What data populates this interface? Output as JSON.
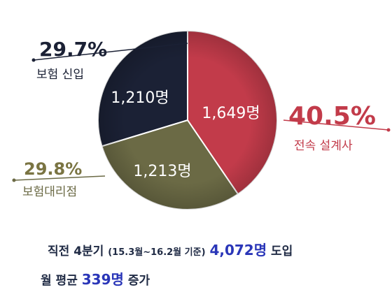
{
  "chart_data": {
    "type": "pie",
    "slices": [
      {
        "label": "전속 설계사",
        "count_label": "1,649명",
        "pct_label": "40.5%",
        "value": 40.5,
        "color": "#c23b4a",
        "pct_color": "#c23b4a",
        "label_color": "#c23b4a"
      },
      {
        "label": "보험대리점",
        "count_label": "1,213명",
        "pct_label": "29.8%",
        "value": 29.8,
        "color": "#6b6a45",
        "pct_color": "#7a7442",
        "label_color": "#6b6a45"
      },
      {
        "label": "보험 신입",
        "count_label": "1,210명",
        "pct_label": "29.7%",
        "value": 29.7,
        "color": "#1b2135",
        "pct_color": "#1b2135",
        "label_color": "#1b2135"
      }
    ]
  },
  "caption": {
    "line1_prefix": "직전 4분기",
    "line1_period": "(15.3월~16.2월 기준)",
    "line1_total": "4,072명",
    "line1_suffix": "도입",
    "line2_prefix": "월 평균",
    "line2_value": "339명",
    "line2_suffix": "증가"
  }
}
